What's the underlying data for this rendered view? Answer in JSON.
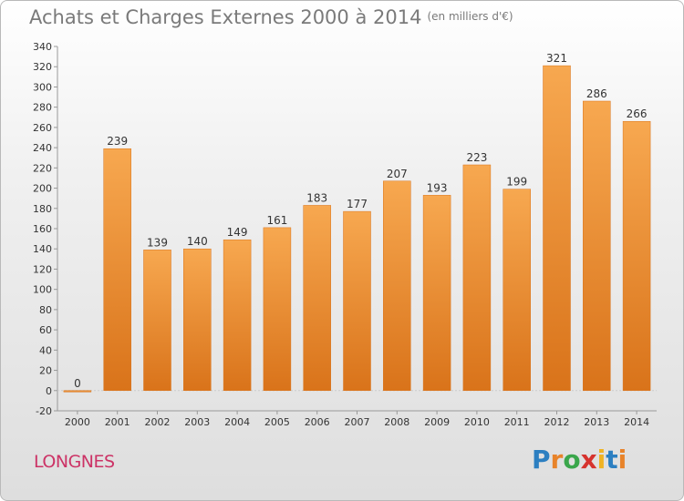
{
  "title": "Achats et Charges Externes 2000 à 2014",
  "unit": "(en milliers d'€)",
  "location": "LONGNES",
  "brand": {
    "letters": [
      "P",
      "r",
      "o",
      "x",
      "i",
      "t",
      "i"
    ],
    "colors": [
      "#2c7fc1",
      "#e8832a",
      "#3aa64b",
      "#d6332e",
      "#f0b323",
      "#2c7fc1",
      "#e8832a"
    ]
  },
  "colors": {
    "bar": "#f0923a",
    "axis": "#999999",
    "text": "#333333",
    "grid": "#dddddd"
  },
  "chart_data": {
    "type": "bar",
    "categories": [
      "2000",
      "2001",
      "2002",
      "2003",
      "2004",
      "2005",
      "2006",
      "2007",
      "2008",
      "2009",
      "2010",
      "2011",
      "2012",
      "2013",
      "2014"
    ],
    "values": [
      0,
      239,
      139,
      140,
      149,
      161,
      183,
      177,
      207,
      193,
      223,
      199,
      321,
      286,
      266
    ],
    "value_labels": [
      "0",
      "239",
      "139",
      "140",
      "149",
      "161",
      "183",
      "177",
      "207",
      "193",
      "223",
      "199",
      "321",
      "286",
      "266"
    ],
    "y_ticks": [
      -20,
      0,
      20,
      40,
      60,
      80,
      100,
      120,
      140,
      160,
      180,
      200,
      220,
      240,
      260,
      280,
      300,
      320,
      340
    ],
    "ylim": [
      -20,
      340
    ],
    "grid": false
  }
}
